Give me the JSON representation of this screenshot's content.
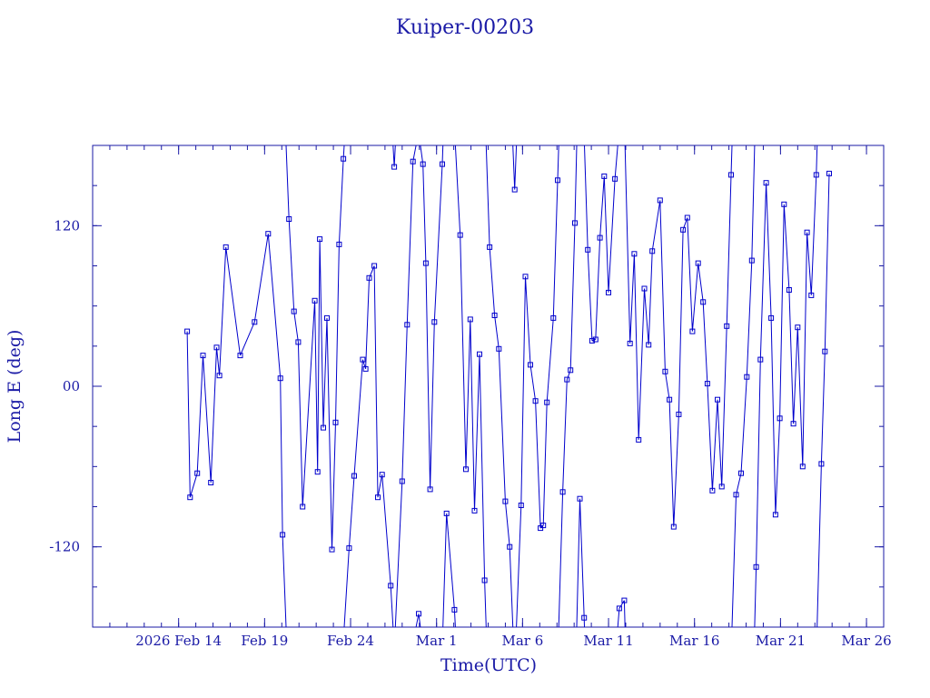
{
  "chart_data": {
    "type": "line",
    "title": "Kuiper-00203",
    "xlabel": "Time(UTC)",
    "ylabel": "Long E (deg)",
    "x_range": [
      "2026-02-09",
      "2026-03-27"
    ],
    "ylim": [
      -180,
      180
    ],
    "x_ticks": [
      {
        "date": "2026-02-14",
        "label": "2026 Feb 14"
      },
      {
        "date": "2026-02-19",
        "label": "Feb 19"
      },
      {
        "date": "2026-02-24",
        "label": "Feb 24"
      },
      {
        "date": "2026-03-01",
        "label": "Mar 1"
      },
      {
        "date": "2026-03-06",
        "label": "Mar 6"
      },
      {
        "date": "2026-03-11",
        "label": "Mar 11"
      },
      {
        "date": "2026-03-16",
        "label": "Mar 16"
      },
      {
        "date": "2026-03-21",
        "label": "Mar 21"
      },
      {
        "date": "2026-03-26",
        "label": "Mar 26"
      }
    ],
    "y_ticks": [
      {
        "value": 120,
        "label": "120"
      },
      {
        "value": 0,
        "label": "00"
      },
      {
        "value": -120,
        "label": "-120"
      }
    ],
    "grid": false,
    "series": [
      {
        "color": "#0000cc",
        "marker": "square",
        "wrap_period": 360,
        "points": [
          [
            "2026-02-14 12:00",
            41
          ],
          [
            "2026-02-14 16:00",
            -83
          ],
          [
            "2026-02-15 02:00",
            -65
          ],
          [
            "2026-02-15 10:00",
            23
          ],
          [
            "2026-02-15 21:00",
            -72
          ],
          [
            "2026-02-16 05:00",
            29
          ],
          [
            "2026-02-16 09:00",
            8
          ],
          [
            "2026-02-16 18:00",
            104
          ],
          [
            "2026-02-17 14:00",
            23
          ],
          [
            "2026-02-18 10:00",
            48
          ],
          [
            "2026-02-19 05:00",
            114
          ],
          [
            "2026-02-19 22:00",
            6
          ],
          [
            "2026-02-20 01:00",
            -111
          ],
          [
            "2026-02-20 10:00",
            125
          ],
          [
            "2026-02-20 17:00",
            56
          ],
          [
            "2026-02-20 23:00",
            33
          ],
          [
            "2026-02-21 05:00",
            -90
          ],
          [
            "2026-02-21 22:00",
            64
          ],
          [
            "2026-02-22 02:00",
            -64
          ],
          [
            "2026-02-22 05:00",
            110
          ],
          [
            "2026-02-22 10:00",
            -31
          ],
          [
            "2026-02-22 15:00",
            51
          ],
          [
            "2026-02-22 22:00",
            -122
          ],
          [
            "2026-02-23 03:00",
            -27
          ],
          [
            "2026-02-23 08:00",
            106
          ],
          [
            "2026-02-23 14:00",
            170
          ],
          [
            "2026-02-23 22:00",
            -121
          ],
          [
            "2026-02-24 05:00",
            -67
          ],
          [
            "2026-02-24 17:00",
            20
          ],
          [
            "2026-02-24 21:00",
            13
          ],
          [
            "2026-02-25 02:00",
            81
          ],
          [
            "2026-02-25 09:00",
            90
          ],
          [
            "2026-02-25 14:00",
            -83
          ],
          [
            "2026-02-25 20:00",
            -66
          ],
          [
            "2026-02-26 08:00",
            -149
          ],
          [
            "2026-02-26 13:00",
            164
          ],
          [
            "2026-02-27 00:00",
            -71
          ],
          [
            "2026-02-27 07:00",
            46
          ],
          [
            "2026-02-27 15:00",
            168
          ],
          [
            "2026-02-27 23:00",
            -170
          ],
          [
            "2026-02-28 05:00",
            166
          ],
          [
            "2026-02-28 09:00",
            92
          ],
          [
            "2026-02-28 15:00",
            -77
          ],
          [
            "2026-02-28 21:00",
            48
          ],
          [
            "2026-03-01 08:00",
            166
          ],
          [
            "2026-03-01 14:00",
            -95
          ],
          [
            "2026-03-02 01:00",
            -167
          ],
          [
            "2026-03-02 09:00",
            113
          ],
          [
            "2026-03-02 17:00",
            -62
          ],
          [
            "2026-03-02 23:00",
            50
          ],
          [
            "2026-03-03 05:00",
            -93
          ],
          [
            "2026-03-03 12:00",
            24
          ],
          [
            "2026-03-03 19:00",
            -145
          ],
          [
            "2026-03-04 02:00",
            104
          ],
          [
            "2026-03-04 09:00",
            53
          ],
          [
            "2026-03-04 15:00",
            28
          ],
          [
            "2026-03-05 00:00",
            -86
          ],
          [
            "2026-03-05 06:00",
            -120
          ],
          [
            "2026-03-05 13:00",
            147
          ],
          [
            "2026-03-05 22:00",
            -89
          ],
          [
            "2026-03-06 04:00",
            82
          ],
          [
            "2026-03-06 11:00",
            16
          ],
          [
            "2026-03-06 18:00",
            -11
          ],
          [
            "2026-03-07 01:00",
            -106
          ],
          [
            "2026-03-07 05:00",
            -104
          ],
          [
            "2026-03-07 10:00",
            -12
          ],
          [
            "2026-03-07 19:00",
            51
          ],
          [
            "2026-03-08 01:00",
            154
          ],
          [
            "2026-03-08 08:00",
            -79
          ],
          [
            "2026-03-08 14:00",
            5
          ],
          [
            "2026-03-08 19:00",
            12
          ],
          [
            "2026-03-09 01:00",
            122
          ],
          [
            "2026-03-09 08:00",
            -84
          ],
          [
            "2026-03-09 14:00",
            -173
          ],
          [
            "2026-03-09 19:00",
            102
          ],
          [
            "2026-03-10 01:00",
            34
          ],
          [
            "2026-03-10 06:00",
            35
          ],
          [
            "2026-03-10 12:00",
            111
          ],
          [
            "2026-03-10 18:00",
            157
          ],
          [
            "2026-03-11 00:00",
            70
          ],
          [
            "2026-03-11 09:00",
            155
          ],
          [
            "2026-03-11 15:00",
            -166
          ],
          [
            "2026-03-11 22:00",
            -160
          ],
          [
            "2026-03-12 06:00",
            32
          ],
          [
            "2026-03-12 12:00",
            99
          ],
          [
            "2026-03-12 18:00",
            -40
          ],
          [
            "2026-03-13 02:00",
            73
          ],
          [
            "2026-03-13 08:00",
            31
          ],
          [
            "2026-03-13 13:00",
            101
          ],
          [
            "2026-03-14 00:00",
            139
          ],
          [
            "2026-03-14 07:00",
            11
          ],
          [
            "2026-03-14 13:00",
            -10
          ],
          [
            "2026-03-14 19:00",
            -105
          ],
          [
            "2026-03-15 02:00",
            -21
          ],
          [
            "2026-03-15 08:00",
            117
          ],
          [
            "2026-03-15 14:00",
            126
          ],
          [
            "2026-03-15 21:00",
            41
          ],
          [
            "2026-03-16 05:00",
            92
          ],
          [
            "2026-03-16 12:00",
            63
          ],
          [
            "2026-03-16 18:00",
            2
          ],
          [
            "2026-03-17 01:00",
            -78
          ],
          [
            "2026-03-17 08:00",
            -10
          ],
          [
            "2026-03-17 14:00",
            -75
          ],
          [
            "2026-03-17 21:00",
            45
          ],
          [
            "2026-03-18 03:00",
            158
          ],
          [
            "2026-03-18 10:00",
            -81
          ],
          [
            "2026-03-18 17:00",
            -65
          ],
          [
            "2026-03-19 01:00",
            7
          ],
          [
            "2026-03-19 08:00",
            94
          ],
          [
            "2026-03-19 14:00",
            -135
          ],
          [
            "2026-03-19 20:00",
            20
          ],
          [
            "2026-03-20 04:00",
            152
          ],
          [
            "2026-03-20 11:00",
            51
          ],
          [
            "2026-03-20 17:00",
            -96
          ],
          [
            "2026-03-20 23:00",
            -24
          ],
          [
            "2026-03-21 05:00",
            136
          ],
          [
            "2026-03-21 12:00",
            72
          ],
          [
            "2026-03-21 18:00",
            -28
          ],
          [
            "2026-03-22 00:00",
            44
          ],
          [
            "2026-03-22 07:00",
            -60
          ],
          [
            "2026-03-22 13:00",
            115
          ],
          [
            "2026-03-22 19:00",
            68
          ],
          [
            "2026-03-23 02:00",
            158
          ],
          [
            "2026-03-23 09:00",
            -58
          ],
          [
            "2026-03-23 14:00",
            26
          ],
          [
            "2026-03-23 20:00",
            159
          ]
        ]
      }
    ]
  }
}
